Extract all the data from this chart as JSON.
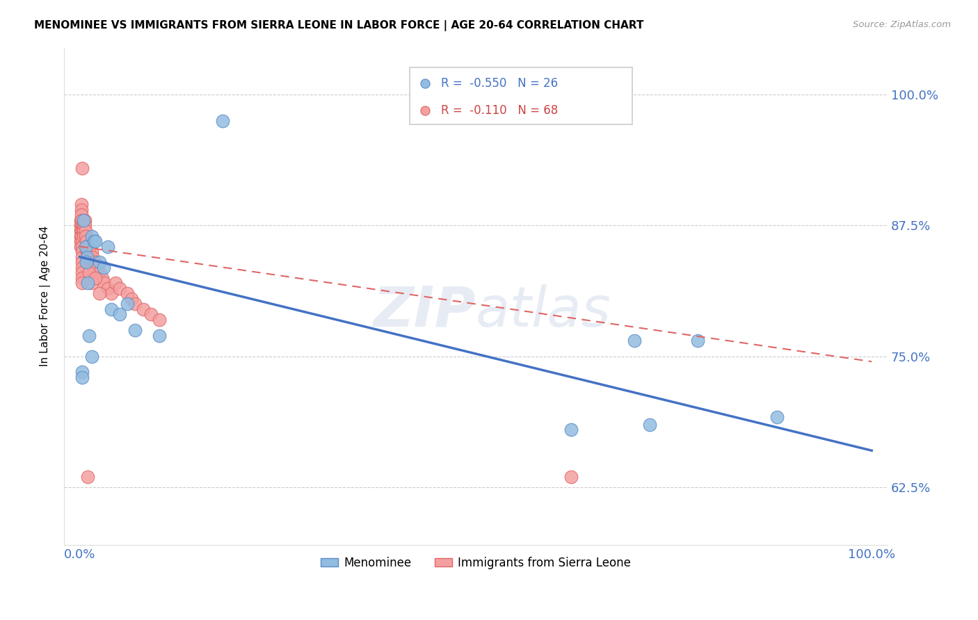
{
  "title": "MENOMINEE VS IMMIGRANTS FROM SIERRA LEONE IN LABOR FORCE | AGE 20-64 CORRELATION CHART",
  "source": "Source: ZipAtlas.com",
  "ylabel": "In Labor Force | Age 20-64",
  "ytick_vals": [
    0.625,
    0.75,
    0.875,
    1.0
  ],
  "ytick_labels": [
    "62.5%",
    "75.0%",
    "87.5%",
    "100.0%"
  ],
  "xtick_vals": [
    0.0,
    1.0
  ],
  "xtick_labels": [
    "0.0%",
    "100.0%"
  ],
  "xlim": [
    -0.02,
    1.02
  ],
  "ylim": [
    0.57,
    1.045
  ],
  "menominee_color": "#92bce0",
  "menominee_edge": "#5b8dc8",
  "sl_color": "#f4a0a0",
  "sl_edge": "#e06666",
  "trendline_men_color": "#4472c4",
  "trendline_sl_color": "#e06666",
  "background_color": "#ffffff",
  "grid_color": "#cccccc",
  "axis_label_color": "#4472c4",
  "watermark": "ZIPatlas",
  "legend_label1": "R =  -0.550   N = 26",
  "legend_label2": "R =  -0.110   N = 68",
  "men_x": [
    0.003,
    0.005,
    0.007,
    0.009,
    0.01,
    0.012,
    0.015,
    0.018,
    0.02,
    0.025,
    0.03,
    0.035,
    0.04,
    0.05,
    0.06,
    0.07,
    0.1,
    0.18,
    0.62,
    0.7,
    0.72,
    0.78,
    0.88,
    0.003,
    0.008,
    0.015
  ],
  "men_y": [
    0.735,
    0.88,
    0.855,
    0.845,
    0.82,
    0.77,
    0.865,
    0.86,
    0.86,
    0.84,
    0.835,
    0.855,
    0.795,
    0.79,
    0.8,
    0.775,
    0.77,
    0.975,
    0.68,
    0.765,
    0.685,
    0.765,
    0.692,
    0.73,
    0.84,
    0.75
  ],
  "sl_x": [
    0.001,
    0.001,
    0.001,
    0.001,
    0.001,
    0.001,
    0.002,
    0.002,
    0.002,
    0.002,
    0.002,
    0.002,
    0.002,
    0.003,
    0.003,
    0.003,
    0.003,
    0.003,
    0.003,
    0.003,
    0.003,
    0.003,
    0.003,
    0.004,
    0.004,
    0.005,
    0.005,
    0.005,
    0.006,
    0.006,
    0.007,
    0.007,
    0.008,
    0.008,
    0.009,
    0.009,
    0.01,
    0.01,
    0.011,
    0.012,
    0.013,
    0.014,
    0.015,
    0.016,
    0.017,
    0.018,
    0.019,
    0.02,
    0.022,
    0.025,
    0.028,
    0.031,
    0.035,
    0.04,
    0.045,
    0.05,
    0.06,
    0.065,
    0.07,
    0.08,
    0.09,
    0.1,
    0.012,
    0.015,
    0.02,
    0.025,
    0.01,
    0.62
  ],
  "sl_y": [
    0.88,
    0.875,
    0.87,
    0.865,
    0.86,
    0.855,
    0.895,
    0.89,
    0.885,
    0.88,
    0.875,
    0.87,
    0.865,
    0.86,
    0.855,
    0.85,
    0.845,
    0.84,
    0.835,
    0.83,
    0.825,
    0.82,
    0.93,
    0.875,
    0.87,
    0.875,
    0.87,
    0.865,
    0.88,
    0.875,
    0.87,
    0.865,
    0.86,
    0.855,
    0.855,
    0.85,
    0.85,
    0.845,
    0.855,
    0.85,
    0.845,
    0.84,
    0.85,
    0.845,
    0.84,
    0.835,
    0.83,
    0.84,
    0.835,
    0.83,
    0.825,
    0.82,
    0.815,
    0.81,
    0.82,
    0.815,
    0.81,
    0.805,
    0.8,
    0.795,
    0.79,
    0.785,
    0.83,
    0.82,
    0.825,
    0.81,
    0.635,
    0.635
  ],
  "men_trend_x0": 0.0,
  "men_trend_x1": 1.0,
  "men_trend_y0": 0.845,
  "men_trend_y1": 0.66,
  "sl_trend_x0": 0.0,
  "sl_trend_x1": 1.0,
  "sl_trend_y0": 0.855,
  "sl_trend_y1": 0.745
}
